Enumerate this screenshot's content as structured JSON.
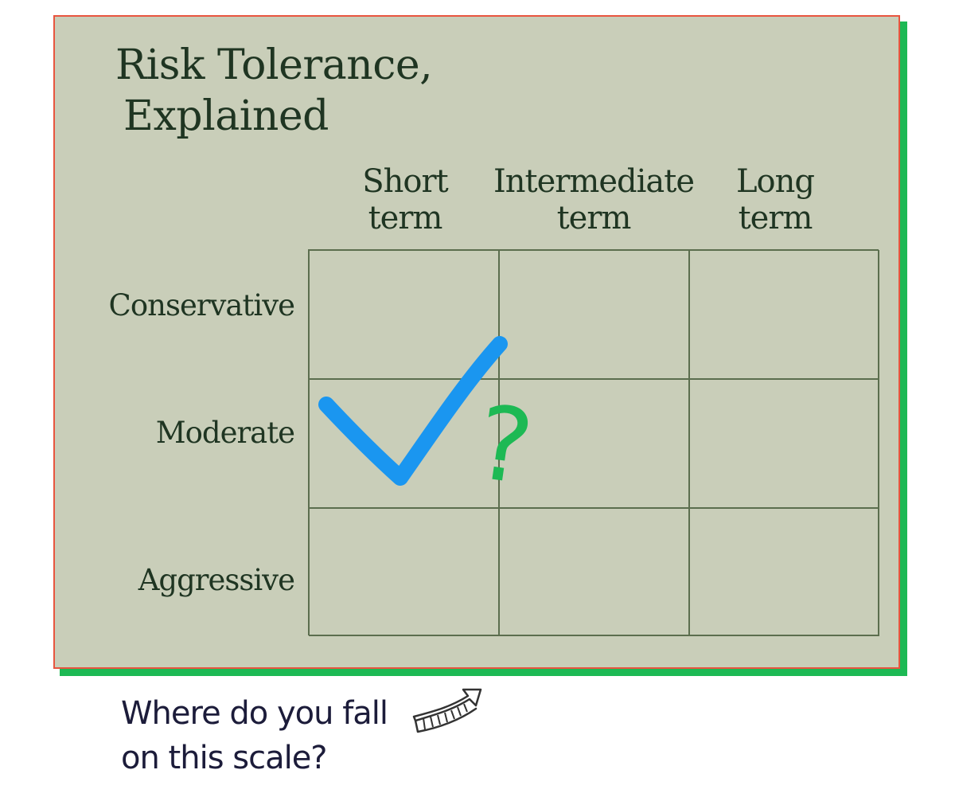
{
  "title": {
    "line1": "Risk Tolerance,",
    "line2": "Explained"
  },
  "columns": [
    {
      "line1": "Short",
      "line2": "term"
    },
    {
      "line1": "Intermediate",
      "line2": "term"
    },
    {
      "line1": "Long",
      "line2": "term"
    }
  ],
  "rows": [
    "Conservative",
    "Moderate",
    "Aggressive"
  ],
  "marks": {
    "checkmark": {
      "row": 1,
      "col": 0,
      "color": "#1a96f0",
      "icon": "checkmark-icon"
    },
    "question_mark": {
      "text": "?",
      "color": "#1db954"
    }
  },
  "footer": {
    "line1": "Where do you fall",
    "line2": "on this scale?",
    "icon": "curved-arrow-icon"
  },
  "colors": {
    "card_fill": "#c9ceb9",
    "card_border": "#e8553f",
    "card_shadow": "#1db954",
    "text": "#1f3522",
    "grid_lines": "#5b6e4e"
  }
}
